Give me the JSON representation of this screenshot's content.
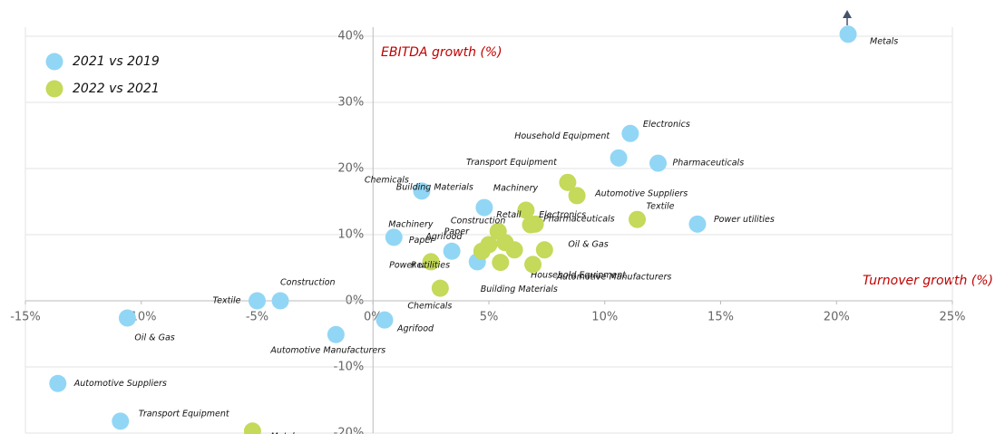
{
  "chart_data": {
    "type": "scatter",
    "x_label": "Turnover growth (%)",
    "y_label": "EBITDA growth (%)",
    "xlim": [
      -15,
      25
    ],
    "xticks": [
      {
        "value": -15,
        "label": "-15%"
      },
      {
        "value": -10,
        "label": "-10%"
      },
      {
        "value": -5,
        "label": "-5%"
      },
      {
        "value": 0,
        "label": "0%"
      },
      {
        "value": 5,
        "label": "5%"
      },
      {
        "value": 10,
        "label": "10%"
      },
      {
        "value": 15,
        "label": "15%"
      },
      {
        "value": 20,
        "label": "20%"
      },
      {
        "value": 25,
        "label": "25%"
      }
    ],
    "ylim": [
      -20,
      40
    ],
    "yticks": [
      {
        "value": -20,
        "label": "-20%"
      },
      {
        "value": -10,
        "label": "-10%"
      },
      {
        "value": 0,
        "label": "0%"
      },
      {
        "value": 10,
        "label": "10%"
      },
      {
        "value": 20,
        "label": "20%"
      },
      {
        "value": 30,
        "label": "30%"
      },
      {
        "value": 40,
        "label": "40%"
      }
    ],
    "grid": true,
    "legend": "top-left",
    "series": [
      {
        "name": "2021 vs 2019",
        "color": "#92d6f5",
        "labels": [
          "Metals",
          "Electronics",
          "Household Equipment",
          "Pharmaceuticals",
          "Power utilities",
          "Chemicals",
          "Building Materials",
          "Machinery",
          "Paper",
          "Retail",
          "Construction",
          "Textile",
          "Oil & Gas",
          "Agrifood",
          "Automotive Manufacturers",
          "Automotive Suppliers",
          "Transport Equipment"
        ],
        "x": [
          20.5,
          11.1,
          10.6,
          12.3,
          14.0,
          2.1,
          4.8,
          0.9,
          3.4,
          4.5,
          -4.0,
          -5.0,
          -10.6,
          0.5,
          -1.6,
          -13.6,
          -10.9
        ],
        "values": [
          40.3,
          25.3,
          21.6,
          20.8,
          11.6,
          16.6,
          14.1,
          9.6,
          7.5,
          5.9,
          0,
          0,
          -2.6,
          -2.9,
          -5.1,
          -12.5,
          -18.2
        ]
      },
      {
        "name": "2022 vs 2021",
        "color": "#c5d95a",
        "labels": [
          "Transport Equipment",
          "Automotive Suppliers",
          "Machinery",
          "Electronics",
          "Textile",
          "Retail",
          "Construction",
          "Agrifood",
          "Pharmaceuticals",
          "Oil & Gas",
          "Household Equipment",
          "Building Materials",
          "Automotive Manufacturers",
          "Power utilities",
          "Chemicals",
          "Paper",
          "Metals"
        ],
        "x": [
          8.4,
          8.8,
          6.6,
          7.0,
          11.4,
          5.4,
          5.7,
          4.7,
          6.8,
          7.4,
          6.1,
          5.5,
          6.9,
          2.5,
          2.9,
          5.0,
          -5.2
        ],
        "values": [
          17.9,
          15.9,
          13.7,
          11.6,
          12.3,
          10.5,
          8.8,
          7.5,
          11.5,
          7.7,
          7.7,
          5.8,
          5.5,
          5.9,
          1.9,
          8.5,
          -19.7
        ]
      }
    ]
  }
}
